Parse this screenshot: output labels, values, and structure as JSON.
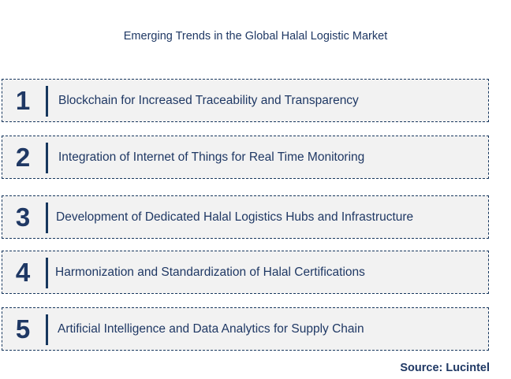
{
  "title": "Emerging Trends in the Global Halal Logistic Market",
  "trends": [
    {
      "number": "1",
      "label": "Blockchain for Increased Traceability and Transparency"
    },
    {
      "number": "2",
      "label": "Integration of Internet of Things for Real Time Monitoring"
    },
    {
      "number": "3",
      "label": "Development of Dedicated Halal Logistics Hubs and Infrastructure"
    },
    {
      "number": "4",
      "label": "Harmonization and Standardization of Halal Certifications"
    },
    {
      "number": "5",
      "label": "Artificial Intelligence and Data Analytics for Supply Chain"
    }
  ],
  "source": "Source: Lucintel"
}
